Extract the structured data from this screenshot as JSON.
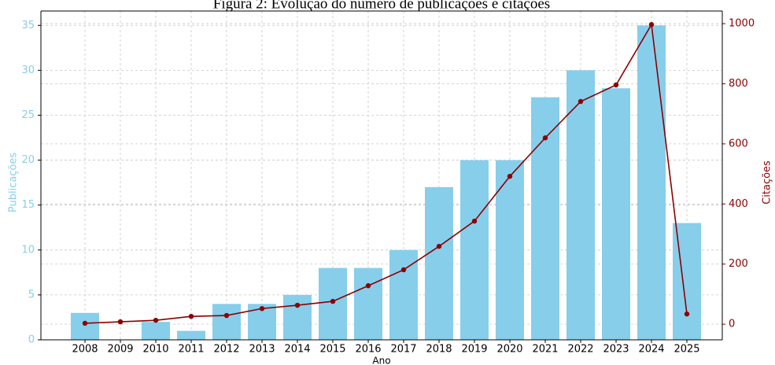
{
  "chart_data": {
    "type": "bar_line",
    "title": "Figura 2: Evolução do número de publicações e citações",
    "x_label": "Ano",
    "y_label": "Publicações",
    "y2_label": "Citações",
    "categories": [
      "2008",
      "2009",
      "2010",
      "2011",
      "2012",
      "2013",
      "2014",
      "2015",
      "2016",
      "2017",
      "2018",
      "2019",
      "2020",
      "2021",
      "2022",
      "2023",
      "2024",
      "2025"
    ],
    "series": [
      {
        "name": "Publicações",
        "type": "bar",
        "color": "#87ceeb",
        "values": [
          3,
          0,
          2,
          1,
          4,
          4,
          5,
          8,
          8,
          10,
          17,
          20,
          20,
          27,
          30,
          28,
          35,
          13
        ]
      },
      {
        "name": "Citações",
        "type": "line",
        "axis": "y2",
        "color": "#8b0000",
        "values": [
          3,
          8,
          13,
          26,
          29,
          52,
          63,
          76,
          128,
          181,
          259,
          343,
          492,
          620,
          741,
          796,
          997,
          34
        ]
      }
    ],
    "ylim": [
      0,
      36.6
    ],
    "yticks": [
      0,
      5,
      10,
      15,
      20,
      25,
      30,
      35
    ],
    "y2lim": [
      -52,
      1042
    ],
    "y2ticks": [
      0,
      200,
      400,
      600,
      800,
      1000
    ],
    "grid": true
  }
}
